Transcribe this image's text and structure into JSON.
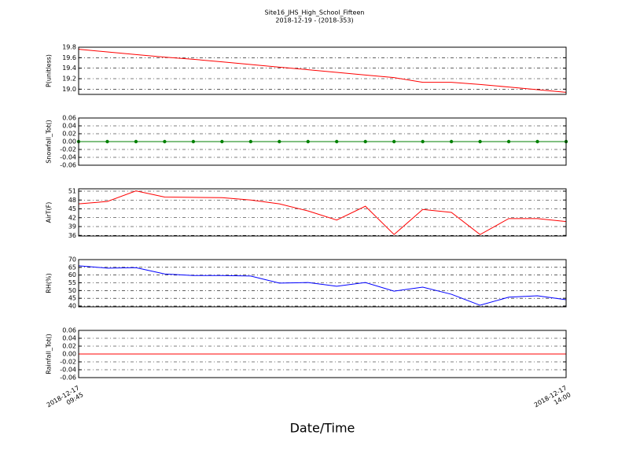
{
  "title": "Site16_JHS_High_School_Fifteen",
  "subtitle": "2018-12-19 - (2018-353)",
  "x_axis": {
    "label": "Date/Time",
    "x": [
      "2018-12-17 09:45",
      "2018-12-17 10:00",
      "2018-12-17 10:15",
      "2018-12-17 10:30",
      "2018-12-17 10:45",
      "2018-12-17 11:00",
      "2018-12-17 11:15",
      "2018-12-17 11:30",
      "2018-12-17 11:45",
      "2018-12-17 12:00",
      "2018-12-17 12:15",
      "2018-12-17 12:30",
      "2018-12-17 12:45",
      "2018-12-17 13:00",
      "2018-12-17 13:15",
      "2018-12-17 13:30",
      "2018-12-17 13:45",
      "2018-12-17 14:00"
    ],
    "xlim": [
      "2018-12-17 09:45",
      "2018-12-17 14:00"
    ],
    "xticks": [
      {
        "value": "2018-12-17 09:45",
        "label": "2018-12-17\n09:45"
      },
      {
        "value": "2018-12-17 14:00",
        "label": "2018-12-17\n14:00"
      }
    ]
  },
  "chart_data": [
    {
      "type": "line",
      "ylabel": "P(unitless)",
      "color": "#ff0000",
      "grid": true,
      "ylim": [
        18.9,
        19.8
      ],
      "yticks": [
        {
          "value": 19,
          "label": "19.0"
        },
        19.2,
        19.4,
        19.6,
        19.8
      ],
      "values": [
        19.76,
        19.71,
        19.66,
        19.61,
        19.57,
        19.52,
        19.47,
        19.42,
        19.37,
        19.32,
        19.27,
        19.22,
        19.13,
        19.13,
        19.09,
        19.04,
        18.99,
        18.94
      ]
    },
    {
      "type": "line",
      "ylabel": "Snowfall_Tot()",
      "color": "#008000",
      "marker": true,
      "grid": true,
      "ylim": [
        -0.06,
        0.06
      ],
      "yticks": [
        -0.06,
        -0.04,
        -0.02,
        {
          "value": 0,
          "label": "0.00"
        },
        0.02,
        0.04,
        0.06
      ],
      "values": [
        0,
        0,
        0,
        0,
        0,
        0,
        0,
        0,
        0,
        0,
        0,
        0,
        0,
        0,
        0,
        0,
        0,
        0
      ]
    },
    {
      "type": "line",
      "ylabel": "AirT(F)",
      "color": "#ff0000",
      "grid": true,
      "ylim": [
        35.8,
        51.8
      ],
      "yticks": [
        36,
        39,
        42,
        45,
        48,
        51
      ],
      "values": [
        46.7,
        47.5,
        51.1,
        49,
        48.9,
        48.8,
        48,
        46.7,
        44.3,
        41.2,
        45.9,
        36.3,
        44.8,
        43.8,
        36.3,
        41.7,
        41.7,
        40.7
      ]
    },
    {
      "type": "line",
      "ylabel": "RH(%)",
      "color": "#0000ff",
      "grid": true,
      "ylim": [
        39.5,
        70
      ],
      "yticks": [
        40,
        45,
        50,
        55,
        60,
        65,
        70
      ],
      "values": [
        66,
        64.5,
        64.8,
        60.7,
        59.7,
        59.7,
        59.4,
        54.8,
        55.2,
        52.8,
        55.2,
        49.6,
        52.2,
        47.6,
        40.5,
        45.7,
        46.6,
        44.1
      ]
    },
    {
      "type": "line",
      "ylabel": "Rainfall_Tot()",
      "color": "#ff0000",
      "grid": true,
      "ylim": [
        -0.06,
        0.06
      ],
      "yticks": [
        -0.06,
        -0.04,
        -0.02,
        {
          "value": 0,
          "label": "0.00"
        },
        0.02,
        0.04,
        0.06
      ],
      "values": [
        0,
        0,
        0,
        0,
        0,
        0,
        0,
        0,
        0,
        0,
        0,
        0,
        0,
        0,
        0,
        0,
        0,
        0
      ]
    }
  ]
}
